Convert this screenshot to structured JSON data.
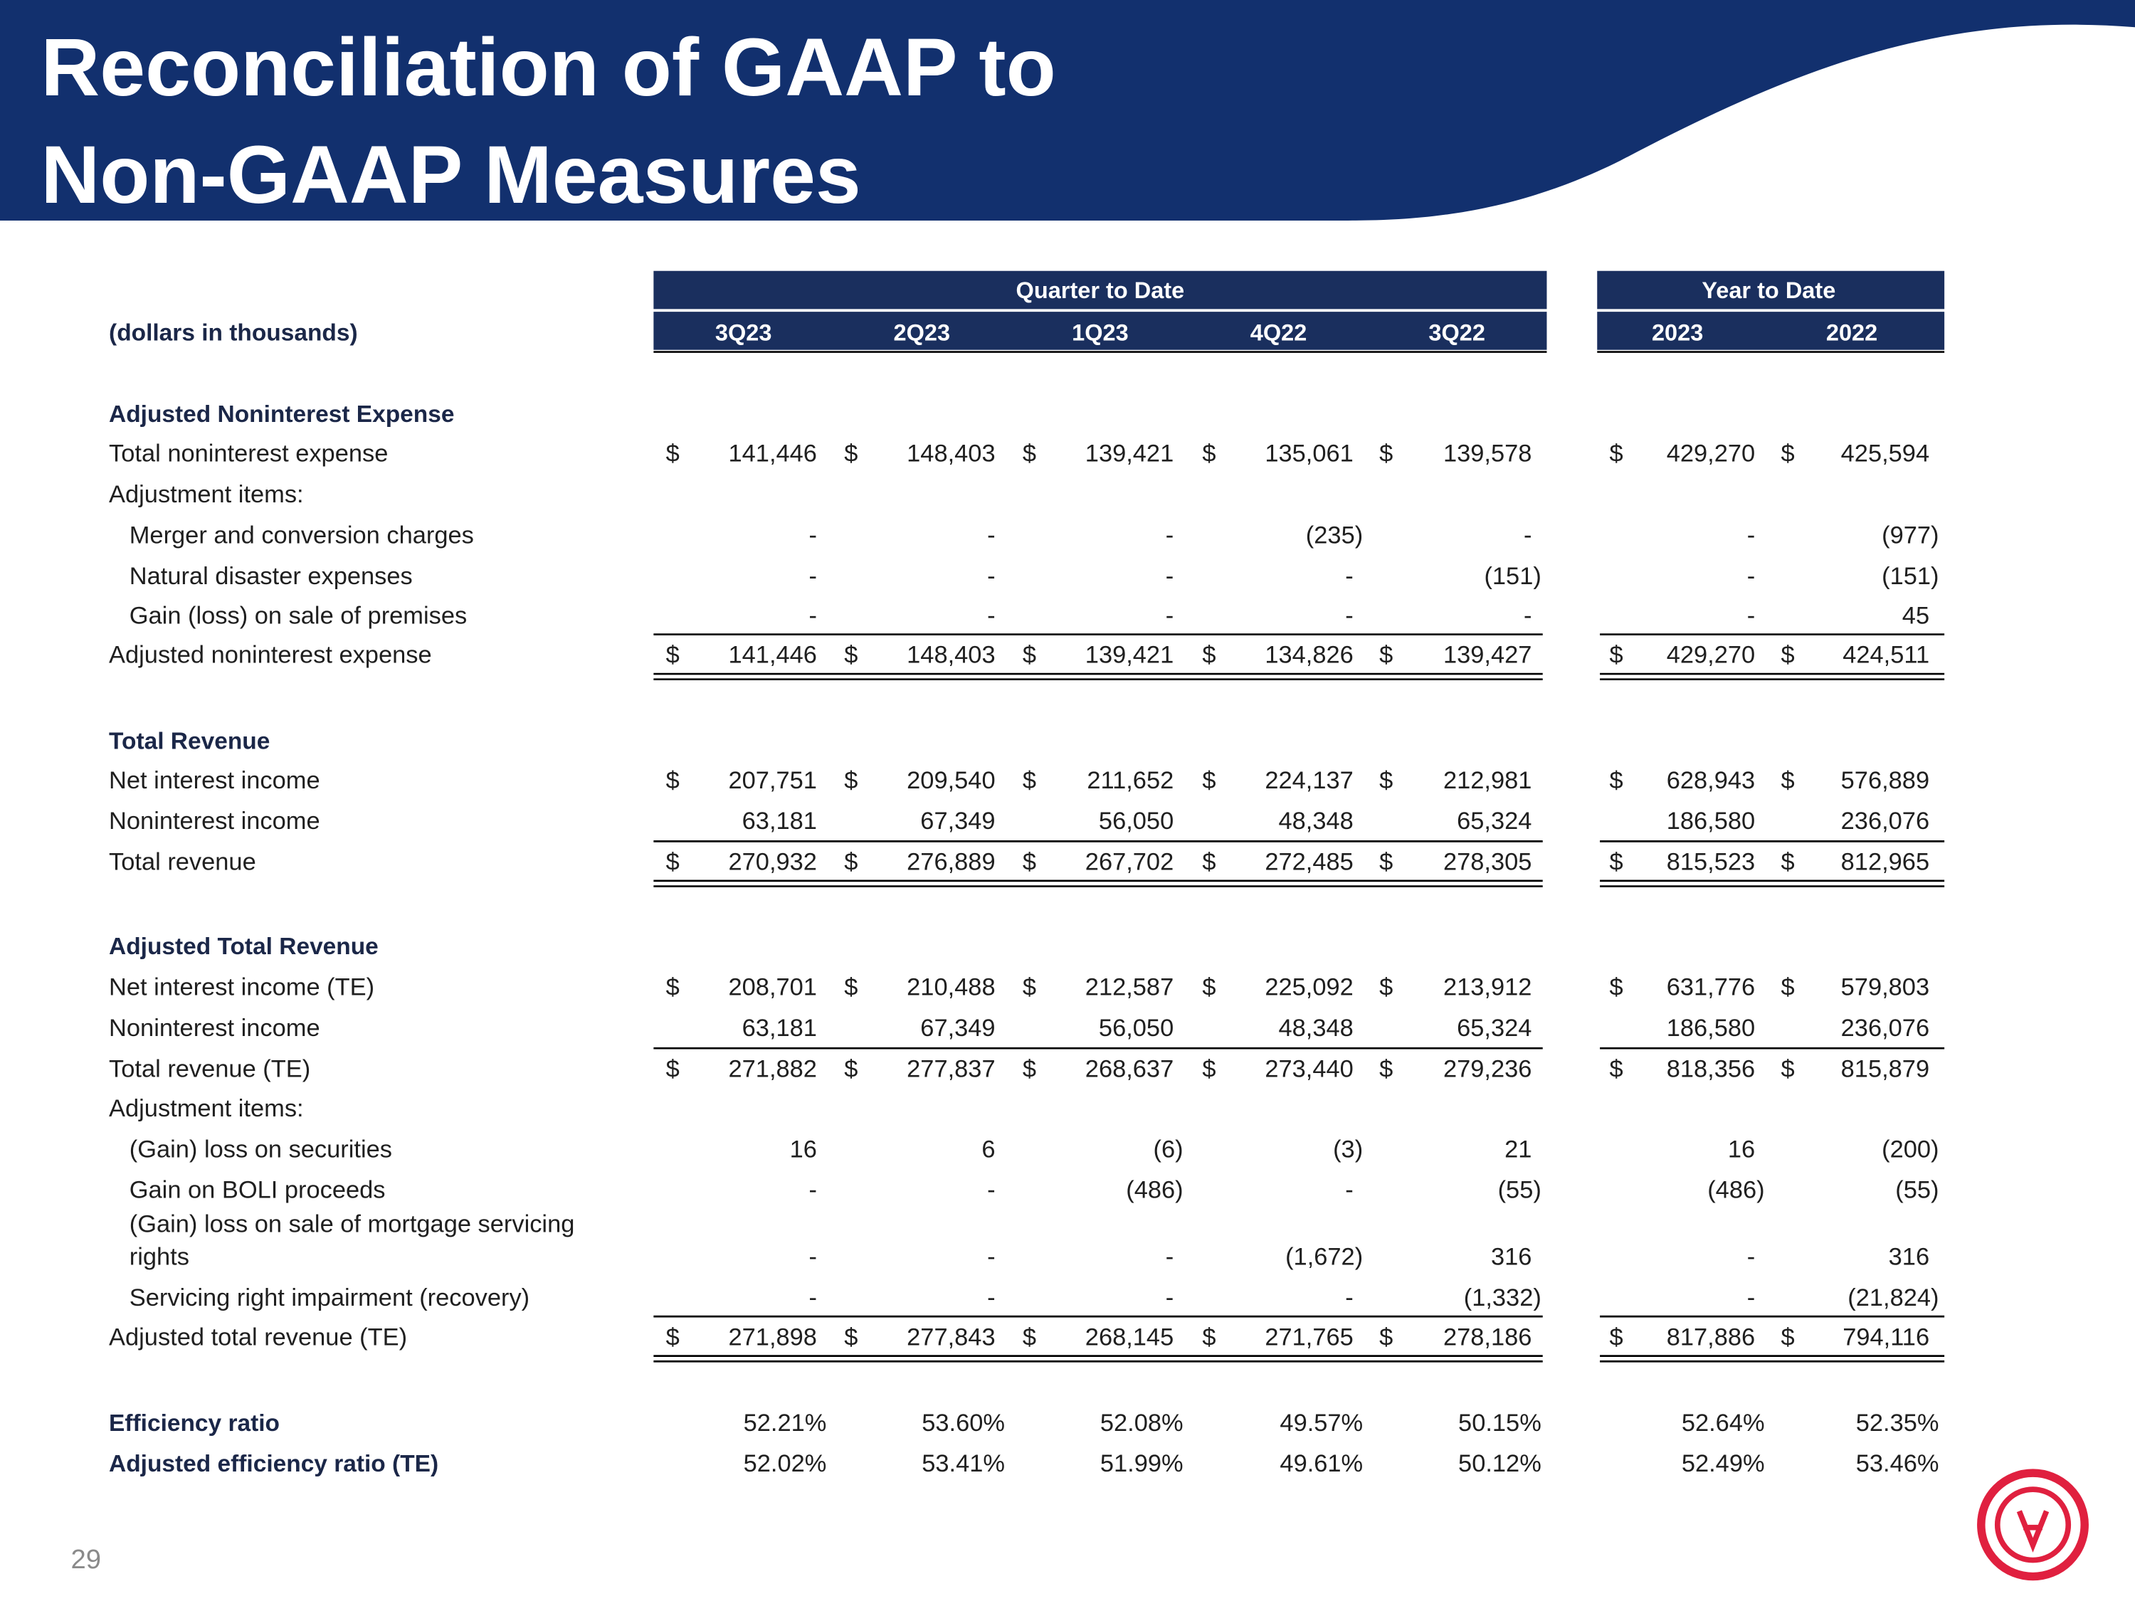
{
  "header": {
    "title_lines": [
      "Reconciliation of GAAP to",
      "Non-GAAP Measures"
    ]
  },
  "table": {
    "unit_label": "(dollars in thousands)",
    "group_headers": [
      "Quarter to Date",
      "Year to Date"
    ],
    "columns": [
      "3Q23",
      "2Q23",
      "1Q23",
      "4Q22",
      "3Q22",
      "2023",
      "2022"
    ],
    "currency_symbol": "$",
    "rows": [
      {
        "label": "Adjusted Noninterest Expense"
      },
      {
        "label": "Total noninterest expense",
        "values": [
          "141,446",
          "148,403",
          "139,421",
          "135,061",
          "139,578",
          "429,270",
          "425,594"
        ]
      },
      {
        "label": "Adjustment items:"
      },
      {
        "label": "Merger and conversion charges",
        "values": [
          "-",
          "-",
          "-",
          "(235)",
          "-",
          "-",
          "(977)"
        ]
      },
      {
        "label": "Natural disaster expenses",
        "values": [
          "-",
          "-",
          "-",
          "-",
          "(151)",
          "-",
          "(151)"
        ]
      },
      {
        "label": "Gain (loss) on sale of premises",
        "values": [
          "-",
          "-",
          "-",
          "-",
          "-",
          "-",
          "45"
        ]
      },
      {
        "label": "Adjusted noninterest expense",
        "values": [
          "141,446",
          "148,403",
          "139,421",
          "134,826",
          "139,427",
          "429,270",
          "424,511"
        ]
      },
      {
        "label": "Total Revenue"
      },
      {
        "label": "Net interest income",
        "values": [
          "207,751",
          "209,540",
          "211,652",
          "224,137",
          "212,981",
          "628,943",
          "576,889"
        ]
      },
      {
        "label": "Noninterest income",
        "values": [
          "63,181",
          "67,349",
          "56,050",
          "48,348",
          "65,324",
          "186,580",
          "236,076"
        ]
      },
      {
        "label": "Total revenue",
        "values": [
          "270,932",
          "276,889",
          "267,702",
          "272,485",
          "278,305",
          "815,523",
          "812,965"
        ]
      },
      {
        "label": "Adjusted Total Revenue"
      },
      {
        "label": "Net interest income (TE)",
        "values": [
          "208,701",
          "210,488",
          "212,587",
          "225,092",
          "213,912",
          "631,776",
          "579,803"
        ]
      },
      {
        "label": "Noninterest income",
        "values": [
          "63,181",
          "67,349",
          "56,050",
          "48,348",
          "65,324",
          "186,580",
          "236,076"
        ]
      },
      {
        "label": "Total revenue (TE)",
        "values": [
          "271,882",
          "277,837",
          "268,637",
          "273,440",
          "279,236",
          "818,356",
          "815,879"
        ]
      },
      {
        "label": "Adjustment items:"
      },
      {
        "label": "(Gain) loss on securities",
        "values": [
          "16",
          "6",
          "(6)",
          "(3)",
          "21",
          "16",
          "(200)"
        ]
      },
      {
        "label": "Gain on BOLI proceeds",
        "values": [
          "-",
          "-",
          "(486)",
          "-",
          "(55)",
          "(486)",
          "(55)"
        ]
      },
      {
        "label": [
          "(Gain) loss on sale of mortgage servicing",
          "rights"
        ],
        "values": [
          "-",
          "-",
          "-",
          "(1,672)",
          "316",
          "-",
          "316"
        ]
      },
      {
        "label": "Servicing right impairment (recovery)",
        "values": [
          "-",
          "-",
          "-",
          "-",
          "(1,332)",
          "-",
          "(21,824)"
        ]
      },
      {
        "label": "Adjusted total revenue (TE)",
        "values": [
          "271,898",
          "277,843",
          "268,145",
          "271,765",
          "278,186",
          "817,886",
          "794,116"
        ]
      },
      {
        "label": "Efficiency ratio",
        "values": [
          "52.21%",
          "53.60%",
          "52.08%",
          "49.57%",
          "50.15%",
          "52.64%",
          "52.35%"
        ]
      },
      {
        "label": "Adjusted efficiency ratio (TE)",
        "values": [
          "52.02%",
          "53.41%",
          "51.99%",
          "49.61%",
          "50.12%",
          "52.49%",
          "53.46%"
        ]
      }
    ]
  },
  "page_number": "29"
}
